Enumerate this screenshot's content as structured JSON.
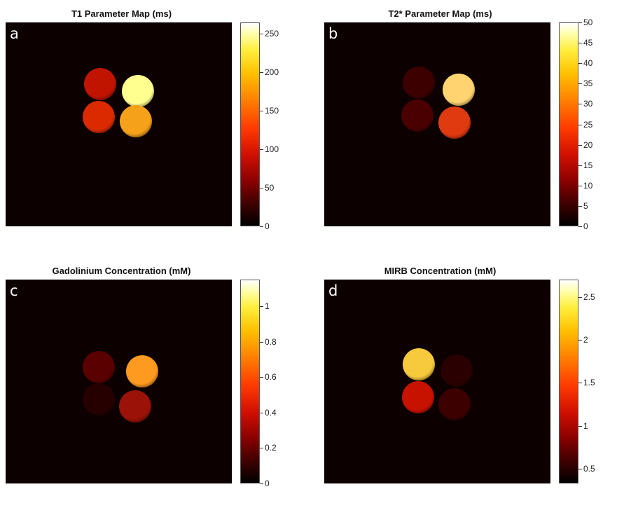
{
  "chart_data": [
    {
      "type": "heatmap",
      "panel_label": "a",
      "title": "T1 Parameter Map (ms)",
      "colormap": "hot",
      "clim": [
        0,
        265
      ],
      "colorbar_ticks": [
        0,
        50,
        100,
        150,
        200,
        250
      ],
      "colorbar_tick_labels": [
        "0",
        "50",
        "100",
        "150",
        "200",
        "250"
      ],
      "regions": [
        {
          "position": "top-left",
          "value": 90,
          "color": "#c01400"
        },
        {
          "position": "top-right",
          "value": 250,
          "color": "#ffff90"
        },
        {
          "position": "bottom-left",
          "value": 100,
          "color": "#dc2a00"
        },
        {
          "position": "bottom-right",
          "value": 190,
          "color": "#f5a21a"
        }
      ]
    },
    {
      "type": "heatmap",
      "panel_label": "b",
      "title": "T2* Parameter Map (ms)",
      "colormap": "hot",
      "clim": [
        0,
        50
      ],
      "colorbar_ticks": [
        0,
        5,
        10,
        15,
        20,
        25,
        30,
        35,
        40,
        45,
        50
      ],
      "colorbar_tick_labels": [
        "0",
        "5",
        "10",
        "15",
        "20",
        "25",
        "30",
        "35",
        "40",
        "45",
        "50"
      ],
      "regions": [
        {
          "position": "top-left",
          "value": 7,
          "color": "#3c0000"
        },
        {
          "position": "top-right",
          "value": 38,
          "color": "#ffd470"
        },
        {
          "position": "bottom-left",
          "value": 8,
          "color": "#4a0000"
        },
        {
          "position": "bottom-right",
          "value": 22,
          "color": "#e03a10"
        }
      ]
    },
    {
      "type": "heatmap",
      "panel_label": "c",
      "title": "Gadolinium Concentration (mM)",
      "colormap": "hot",
      "clim": [
        0,
        1.15
      ],
      "colorbar_ticks": [
        0,
        0.2,
        0.4,
        0.6,
        0.8,
        1
      ],
      "colorbar_tick_labels": [
        "0",
        "0.2",
        "0.4",
        "0.6",
        "0.8",
        "1"
      ],
      "regions": [
        {
          "position": "top-left",
          "value": 0.15,
          "color": "#5a0000"
        },
        {
          "position": "top-right",
          "value": 0.9,
          "color": "#ff9a20"
        },
        {
          "position": "bottom-left",
          "value": 0.05,
          "color": "#260000"
        },
        {
          "position": "bottom-right",
          "value": 0.35,
          "color": "#9a1208"
        }
      ]
    },
    {
      "type": "heatmap",
      "panel_label": "d",
      "title": "MIRB Concentration (mM)",
      "colormap": "hot",
      "clim": [
        0.33,
        2.7
      ],
      "colorbar_ticks": [
        0.5,
        1,
        1.5,
        2,
        2.5
      ],
      "colorbar_tick_labels": [
        "0.5",
        "1",
        "1.5",
        "2",
        "2.5"
      ],
      "regions": [
        {
          "position": "top-left",
          "value": 2.3,
          "color": "#f7c93c"
        },
        {
          "position": "top-right",
          "value": 0.6,
          "color": "#2a0000"
        },
        {
          "position": "bottom-left",
          "value": 1.2,
          "color": "#c81200"
        },
        {
          "position": "bottom-right",
          "value": 0.6,
          "color": "#3c0000"
        }
      ]
    }
  ]
}
